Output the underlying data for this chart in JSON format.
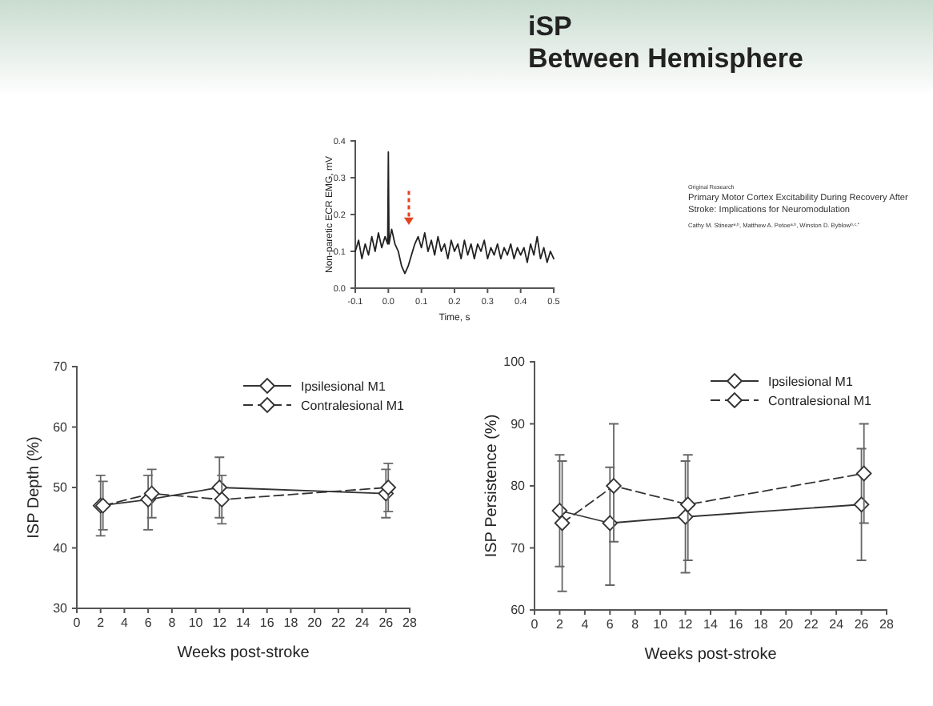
{
  "chart_data": [
    {
      "type": "other",
      "title": "iSP",
      "subtitle": "Between Hemisphere"
    },
    {
      "type": "line",
      "xlabel": "Time, s",
      "ylabel": "Non-paretic ECR EMG, mV",
      "xlim": [
        -0.1,
        0.5
      ],
      "ylim": [
        0,
        0.4
      ],
      "xticks": [
        -0.1,
        {
          "value": 0,
          "label": "0.0"
        },
        0.1,
        0.2,
        0.3,
        0.4,
        0.5
      ],
      "yticks": [
        {
          "value": 0,
          "label": "0.0"
        },
        0.1,
        0.2,
        0.3,
        0.4
      ],
      "marker": "none",
      "legend": false,
      "series": [
        {
          "color": "#222222",
          "line_style": "solid",
          "x": [
            -0.1,
            -0.09,
            -0.08,
            -0.07,
            -0.06,
            -0.05,
            -0.04,
            -0.03,
            -0.02,
            -0.01,
            -0.002,
            0,
            0.002,
            0.01,
            0.02,
            0.03,
            0.04,
            0.05,
            0.06,
            0.07,
            0.08,
            0.09,
            0.1,
            0.11,
            0.12,
            0.13,
            0.14,
            0.15,
            0.16,
            0.17,
            0.18,
            0.19,
            0.2,
            0.21,
            0.22,
            0.23,
            0.24,
            0.25,
            0.26,
            0.27,
            0.28,
            0.29,
            0.3,
            0.31,
            0.32,
            0.33,
            0.34,
            0.35,
            0.36,
            0.37,
            0.38,
            0.39,
            0.4,
            0.41,
            0.42,
            0.43,
            0.44,
            0.45,
            0.46,
            0.47,
            0.48,
            0.49,
            0.5
          ],
          "values": [
            0.1,
            0.13,
            0.08,
            0.12,
            0.09,
            0.14,
            0.1,
            0.15,
            0.11,
            0.14,
            0.12,
            0.37,
            0.12,
            0.16,
            0.12,
            0.1,
            0.06,
            0.04,
            0.06,
            0.09,
            0.12,
            0.14,
            0.11,
            0.15,
            0.1,
            0.13,
            0.09,
            0.14,
            0.1,
            0.12,
            0.08,
            0.13,
            0.1,
            0.12,
            0.08,
            0.13,
            0.09,
            0.12,
            0.08,
            0.12,
            0.1,
            0.13,
            0.08,
            0.11,
            0.09,
            0.12,
            0.08,
            0.11,
            0.09,
            0.12,
            0.08,
            0.11,
            0.09,
            0.11,
            0.07,
            0.12,
            0.09,
            0.14,
            0.08,
            0.11,
            0.07,
            0.1,
            0.08
          ]
        }
      ]
    },
    {
      "type": "other",
      "annotations": [
        "Original Research",
        "Primary Motor Cortex Excitability During Recovery After Stroke: Implications for Neuromodulation",
        "Cathy M. Stinear$^{a,b}$, Matthew A. Petoe$^{a,b}$, Winston D. Byblow$^{b,c,*}$"
      ]
    },
    {
      "type": "line",
      "xlabel": "Weeks post-stroke",
      "ylabel": "ISP Depth (%)",
      "xlim": [
        0,
        28
      ],
      "ylim": [
        30,
        70
      ],
      "xticks": [
        0,
        2,
        4,
        6,
        8,
        10,
        12,
        14,
        16,
        18,
        20,
        22,
        24,
        26,
        28
      ],
      "yticks": [
        30,
        40,
        50,
        60,
        70
      ],
      "marker": "diamond",
      "legend": "top right",
      "series": [
        {
          "name": "Ipsilesional M1",
          "color": "#333333",
          "line_style": "solid",
          "x": [
            2,
            6,
            12,
            26
          ],
          "values": [
            47,
            48,
            50,
            49
          ],
          "errors": [
            [
              42,
              52
            ],
            [
              43,
              52
            ],
            [
              45,
              55
            ],
            [
              45,
              53
            ]
          ]
        },
        {
          "name": "Contralesional M1",
          "color": "#333333",
          "line_style": "dashed",
          "x": [
            2.2,
            6.3,
            12.2,
            26.2
          ],
          "values": [
            47,
            49,
            48,
            50
          ],
          "errors": [
            [
              43,
              51
            ],
            [
              45,
              53
            ],
            [
              44,
              52
            ],
            [
              46,
              54
            ]
          ]
        }
      ]
    },
    {
      "type": "line",
      "xlabel": "Weeks post-stroke",
      "ylabel": "ISP Persistence (%)",
      "xlim": [
        0,
        28
      ],
      "ylim": [
        60,
        100
      ],
      "xticks": [
        0,
        2,
        4,
        6,
        8,
        10,
        12,
        14,
        16,
        18,
        20,
        22,
        24,
        26,
        28
      ],
      "yticks": [
        60,
        70,
        80,
        90,
        100
      ],
      "marker": "diamond",
      "legend": "top right",
      "series": [
        {
          "name": "Ipsilesional M1",
          "color": "#333333",
          "line_style": "solid",
          "x": [
            2,
            6,
            12,
            26
          ],
          "values": [
            76,
            74,
            75,
            77
          ],
          "errors": [
            [
              67,
              85
            ],
            [
              64,
              83
            ],
            [
              66,
              84
            ],
            [
              68,
              86
            ]
          ]
        },
        {
          "name": "Contralesional M1",
          "color": "#333333",
          "line_style": "dashed",
          "x": [
            2.2,
            6.3,
            12.2,
            26.2
          ],
          "values": [
            74,
            80,
            77,
            82
          ],
          "errors": [
            [
              63,
              84
            ],
            [
              71,
              90
            ],
            [
              68,
              85
            ],
            [
              74,
              90
            ]
          ]
        }
      ]
    }
  ]
}
